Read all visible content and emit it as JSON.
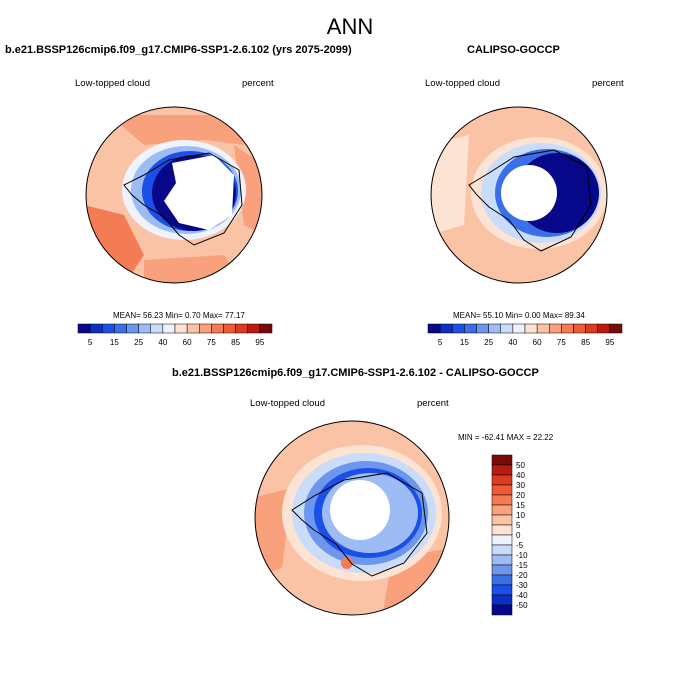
{
  "main_title": "ANN",
  "panels": [
    {
      "title": "b.e21.BSSP126cmip6.f09_g17.CMIP6-SSP1-2.6.102 (yrs 2075-2099)",
      "left_label": "Low-topped cloud",
      "right_label": "percent",
      "stats": "MEAN=  56.23  Min=   0.70  Max=  77.17"
    },
    {
      "title": "CALIPSO-GOCCP",
      "left_label": "Low-topped cloud",
      "right_label": "percent",
      "stats": "MEAN=  55.10  Min=   0.00  Max=  89.34"
    },
    {
      "title": "b.e21.BSSP126cmip6.f09_g17.CMIP6-SSP1-2.6.102 - CALIPSO-GOCCP",
      "left_label": "Low-topped cloud",
      "right_label": "percent",
      "stats": "MIN = -62.41 MAX =  22.22"
    }
  ],
  "colorbar_abs": {
    "colors": [
      "#08088a",
      "#0b2fc4",
      "#1c4fe6",
      "#3a6fe8",
      "#6d96ef",
      "#9dbcf5",
      "#c9dcfa",
      "#eef3fd",
      "#fde3d4",
      "#fbc3a6",
      "#f9a07c",
      "#f47c55",
      "#ee5a36",
      "#dc3b1f",
      "#b71c0f",
      "#7a0a0a"
    ],
    "tick_labels": [
      "5",
      "15",
      "25",
      "40",
      "60",
      "75",
      "85",
      "95"
    ]
  },
  "colorbar_diff": {
    "colors": [
      "#7a0a0a",
      "#b71c0f",
      "#dc3b1f",
      "#ee5a36",
      "#f47c55",
      "#f9a07c",
      "#fbc3a6",
      "#fde3d4",
      "#eef3fd",
      "#c9dcfa",
      "#9dbcf5",
      "#6d96ef",
      "#3a6fe8",
      "#1c4fe6",
      "#0b2fc4",
      "#08088a"
    ],
    "tick_labels": [
      "50",
      "40",
      "30",
      "20",
      "15",
      "10",
      "5",
      "0",
      "-5",
      "-10",
      "-15",
      "-20",
      "-30",
      "-40",
      "-50"
    ]
  }
}
